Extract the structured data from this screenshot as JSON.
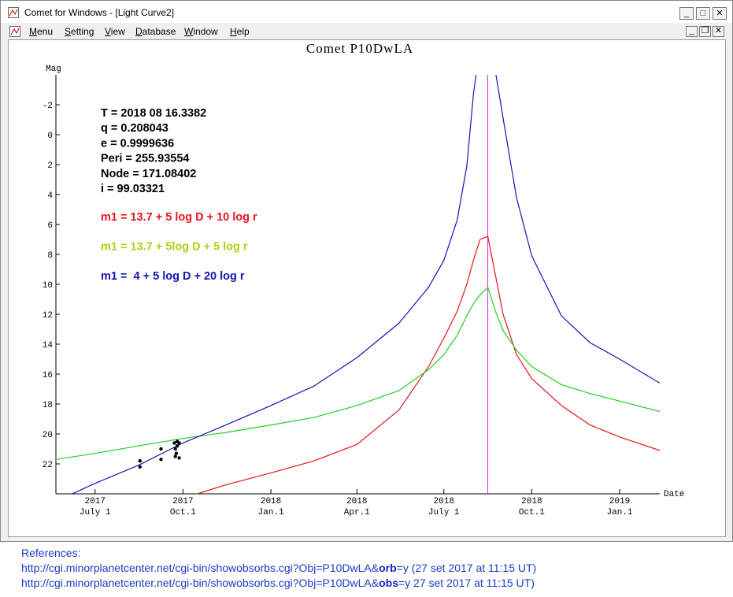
{
  "window": {
    "title": "Comet for Windows - [Light Curve2]",
    "menu": [
      "Menu",
      "Setting",
      "View",
      "Database",
      "Window",
      "Help"
    ]
  },
  "chart_data": {
    "type": "line",
    "title": "Comet P10DwLA",
    "y_label": "Mag",
    "x_label": "Date",
    "annotations": [
      "T = 2018 08 16.3382",
      "q = 0.208043",
      "e = 0.9999636",
      "Peri = 255.93554",
      "Node = 171.08402",
      "i = 99.03321"
    ],
    "x": [
      "2017-05-21",
      "2017-07-01",
      "2017-08-15",
      "2017-10-01",
      "2017-11-15",
      "2018-01-01",
      "2018-02-15",
      "2018-04-01",
      "2018-05-15",
      "2018-06-15",
      "2018-07-01",
      "2018-07-15",
      "2018-07-25",
      "2018-08-01",
      "2018-08-08",
      "2018-08-16",
      "2018-08-24",
      "2018-09-01",
      "2018-09-15",
      "2018-10-01",
      "2018-11-01",
      "2018-12-01",
      "2019-01-01",
      "2019-02-12"
    ],
    "series": [
      {
        "name": "m1 = 13.7 + 5 log D + 10 log r",
        "color": "#e8141c",
        "text_color": "#e8141c",
        "values": [
          null,
          null,
          null,
          24.3,
          23.4,
          22.6,
          21.8,
          20.7,
          18.4,
          15.5,
          13.6,
          11.8,
          10.0,
          8.4,
          7.0,
          6.8,
          9.4,
          12.0,
          14.7,
          16.3,
          18.1,
          19.4,
          20.2,
          21.1
        ]
      },
      {
        "name": "m1 = 13.7 + 5log D + 5 log r",
        "color": "#22d022",
        "text_color": "#a8d414",
        "values": [
          21.7,
          21.3,
          20.8,
          20.3,
          19.9,
          19.4,
          18.9,
          18.1,
          17.1,
          15.7,
          14.7,
          13.4,
          12.1,
          11.3,
          10.7,
          10.2,
          11.8,
          13.1,
          14.4,
          15.5,
          16.7,
          17.3,
          17.8,
          18.5
        ]
      },
      {
        "name": "m1 =  4 + 5 log D + 20 log r",
        "color": "#1414b4",
        "text_color": "#1414b4",
        "values": [
          24.5,
          23.3,
          22.1,
          20.6,
          19.4,
          18.1,
          16.8,
          14.9,
          12.6,
          10.2,
          8.4,
          5.7,
          2.1,
          -2.7,
          -6,
          -8,
          -4.2,
          -1.1,
          4.2,
          8.1,
          12.1,
          13.9,
          15,
          16.6
        ]
      },
      {
        "type": "scatter",
        "color": "#000000",
        "x": [
          "2017-08-17",
          "2017-08-17",
          "2017-09-08",
          "2017-09-08",
          "2017-09-22",
          "2017-09-23",
          "2017-09-24",
          "2017-09-25",
          "2017-09-25",
          "2017-09-27",
          "2017-09-27",
          "2017-09-23"
        ],
        "values": [
          21.8,
          22.2,
          21.0,
          21.7,
          20.6,
          21.0,
          21.3,
          20.5,
          20.8,
          20.6,
          21.6,
          21.5
        ]
      }
    ],
    "marker_line": {
      "x": "2018-08-16",
      "color": "#e020e0"
    },
    "xlim": [
      "2017-05-21",
      "2019-02-12"
    ],
    "xticks": [
      {
        "value": "2017-07-01",
        "label": [
          "2017",
          "July 1"
        ]
      },
      {
        "value": "2017-10-01",
        "label": [
          "2017",
          "Oct.1"
        ]
      },
      {
        "value": "2018-01-01",
        "label": [
          "2018",
          "Jan.1"
        ]
      },
      {
        "value": "2018-04-01",
        "label": [
          "2018",
          "Apr.1"
        ]
      },
      {
        "value": "2018-07-01",
        "label": [
          "2018",
          "July 1"
        ]
      },
      {
        "value": "2018-10-01",
        "label": [
          "2018",
          "Oct.1"
        ]
      },
      {
        "value": "2019-01-01",
        "label": [
          "2019",
          "Jan.1"
        ]
      }
    ],
    "ylim": [
      24,
      -4
    ],
    "yticks": [
      -2,
      0,
      2,
      4,
      6,
      8,
      10,
      12,
      14,
      16,
      18,
      20,
      22
    ]
  },
  "references": {
    "heading": "References:",
    "lines": [
      [
        "http://cgi.minorplanetcenter.net/cgi-bin/showobsorbs.cgi?Obj=P10DwLA&",
        "orb",
        "=y  (27 set 2017 at 11:15 UT)"
      ],
      [
        "http://cgi.minorplanetcenter.net/cgi-bin/showobsorbs.cgi?Obj=P10DwLA&",
        "obs",
        "=y  27 set 2017 at 11:15 UT)"
      ]
    ]
  }
}
